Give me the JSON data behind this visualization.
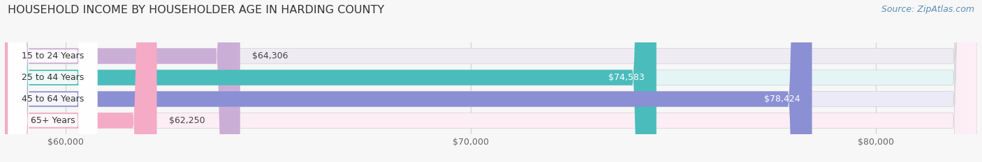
{
  "title": "HOUSEHOLD INCOME BY HOUSEHOLDER AGE IN HARDING COUNTY",
  "source": "Source: ZipAtlas.com",
  "categories": [
    "15 to 24 Years",
    "25 to 44 Years",
    "45 to 64 Years",
    "65+ Years"
  ],
  "values": [
    64306,
    74583,
    78424,
    62250
  ],
  "bar_colors": [
    "#cbaed6",
    "#4bbcbc",
    "#8b8fd4",
    "#f5aac5"
  ],
  "bar_bg_colors": [
    "#eeebf2",
    "#e5f4f4",
    "#eceaf6",
    "#fdedf4"
  ],
  "value_labels": [
    "$64,306",
    "$74,583",
    "$78,424",
    "$62,250"
  ],
  "value_label_inside": [
    false,
    true,
    true,
    false
  ],
  "xmin": 58500,
  "xmax": 82500,
  "xticks": [
    60000,
    70000,
    80000
  ],
  "xtick_labels": [
    "$60,000",
    "$70,000",
    "$80,000"
  ],
  "title_fontsize": 11.5,
  "label_fontsize": 9,
  "value_fontsize": 9,
  "source_fontsize": 9,
  "background_color": "#f7f7f7"
}
